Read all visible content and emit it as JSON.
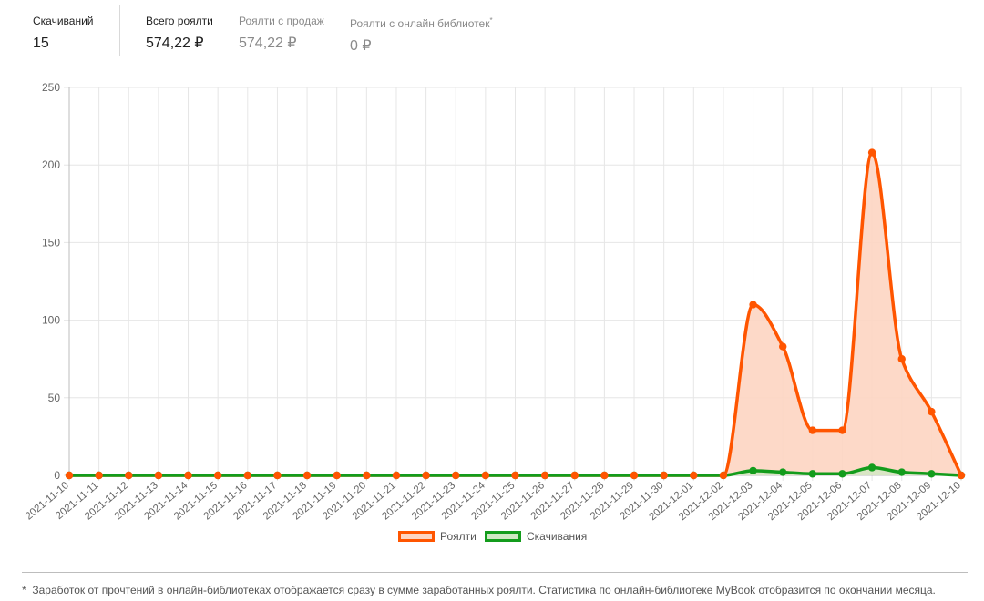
{
  "stats": {
    "downloads": {
      "label": "Скачиваний",
      "value": "15"
    },
    "total_royalty": {
      "label": "Всего роялти",
      "value": "574,22 ₽"
    },
    "sales_royalty": {
      "label": "Роялти с продаж",
      "value": "574,22 ₽"
    },
    "library_royalty": {
      "label": "Роялти с онлайн библиотек",
      "label_mark": "*",
      "value": "0 ₽"
    }
  },
  "chart_data": {
    "type": "area",
    "x": [
      "2021-11-10",
      "2021-11-11",
      "2021-11-12",
      "2021-11-13",
      "2021-11-14",
      "2021-11-15",
      "2021-11-16",
      "2021-11-17",
      "2021-11-18",
      "2021-11-19",
      "2021-11-20",
      "2021-11-21",
      "2021-11-22",
      "2021-11-23",
      "2021-11-24",
      "2021-11-25",
      "2021-11-26",
      "2021-11-27",
      "2021-11-28",
      "2021-11-29",
      "2021-11-30",
      "2021-12-01",
      "2021-12-02",
      "2021-12-03",
      "2021-12-04",
      "2021-12-05",
      "2021-12-06",
      "2021-12-07",
      "2021-12-08",
      "2021-12-09",
      "2021-12-10"
    ],
    "series": [
      {
        "name": "Роялти",
        "color": "#ff5500",
        "fill": "#fdd5c2",
        "values": [
          0,
          0,
          0,
          0,
          0,
          0,
          0,
          0,
          0,
          0,
          0,
          0,
          0,
          0,
          0,
          0,
          0,
          0,
          0,
          0,
          0,
          0,
          0,
          110,
          83,
          29,
          29,
          208,
          75,
          41,
          0
        ]
      },
      {
        "name": "Скачивания",
        "color": "#139c1c",
        "fill": "#cfe8c4",
        "values": [
          0,
          0,
          0,
          0,
          0,
          0,
          0,
          0,
          0,
          0,
          0,
          0,
          0,
          0,
          0,
          0,
          0,
          0,
          0,
          0,
          0,
          0,
          0,
          3,
          2,
          1,
          1,
          5,
          2,
          1,
          0
        ]
      }
    ],
    "ylim": [
      0,
      250
    ],
    "yticks": [
      0,
      50,
      100,
      150,
      200,
      250
    ],
    "grid": true,
    "legend": "bottom-center"
  },
  "footnote": {
    "mark": "*",
    "text": "Заработок от прочтений в онлайн-библиотеках отображается сразу в сумме заработанных роялти. Статистика по онлайн-библиотеке MyBook отобразится по окончании месяца."
  }
}
